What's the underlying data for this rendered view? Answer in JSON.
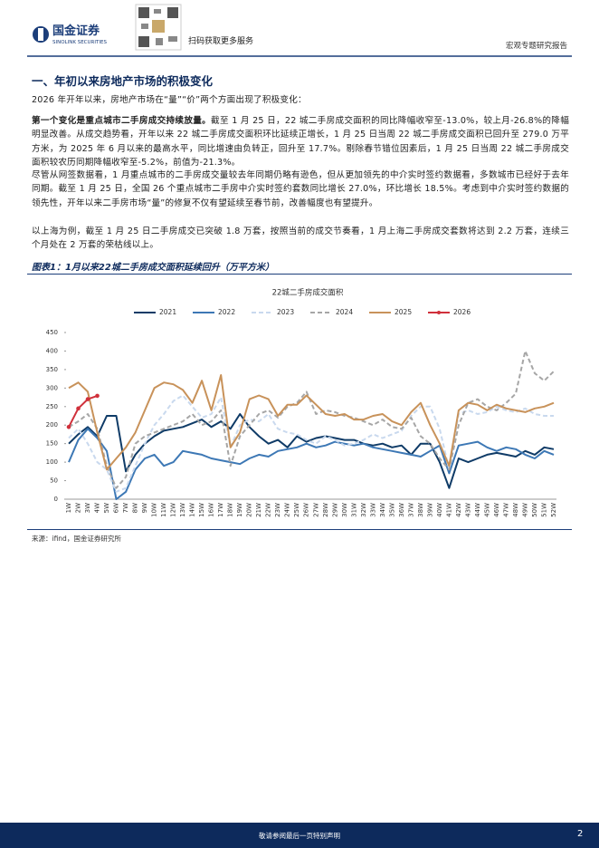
{
  "header": {
    "logo_name": "国金证券",
    "logo_sub": "SINOLINK SECURITIES",
    "qr_caption": "扫码获取更多服务",
    "report_type": "宏观专题研究报告"
  },
  "section_title": "一、年初以来房地产市场的积极变化",
  "paragraphs": [
    "2026 年开年以来，房地产市场在“量”“价”两个方面出现了积极变化：",
    {
      "lead": "第一个变化是重点城市二手房成交持续放量。",
      "text": "截至 1 月 25 日，22 城二手房成交面积的同比降幅收窄至-13.0%，较上月-26.8%的降幅明显改善。从成交趋势看，开年以来 22 城二手房成交面积环比延续正增长，1 月 25 日当周 22 城二手房成交面积已回升至 279.0 万平方米，为 2025 年 6 月以来的最高水平，同比增速由负转正，回升至 17.7%。剔除春节错位因素后，1 月 25 日当周 22 城二手房成交面积较农历同期降幅收窄至-5.2%，前值为-21.3%。"
    },
    "尽管从网签数据看，1 月重点城市的二手房成交量较去年同期仍略有逊色，但从更加领先的中介实时签约数据看，多数城市已经好于去年同期。截至 1 月 25 日，全国 26 个重点城市二手房中介实时签约套数同比增长 27.0%，环比增长 18.5%。考虑到中介实时签约数据的领先性，开年以来二手房市场“量”的修复不仅有望延续至春节前，改善幅度也有望提升。",
    "以上海为例，截至 1 月 25 日二手房成交已突破 1.8 万套，按照当前的成交节奏看，1 月上海二手房成交套数将达到 2.2 万套，连续三个月处在 2 万套的荣枯线以上。"
  ],
  "figure": {
    "title": "图表1：1月以来22城二手房成交面积延续回升（万平方米）",
    "source": "来源：ifind，国金证券研究所"
  },
  "chart_data": {
    "type": "line",
    "title": "22城二手房成交面积",
    "categories": [
      "1W",
      "2W",
      "3W",
      "4W",
      "5W",
      "6W",
      "7W",
      "8W",
      "9W",
      "10W",
      "11W",
      "12W",
      "13W",
      "14W",
      "15W",
      "16W",
      "17W",
      "18W",
      "19W",
      "20W",
      "21W",
      "22W",
      "23W",
      "24W",
      "25W",
      "26W",
      "27W",
      "28W",
      "29W",
      "30W",
      "31W",
      "32W",
      "33W",
      "34W",
      "35W",
      "36W",
      "37W",
      "38W",
      "39W",
      "40W",
      "41W",
      "42W",
      "43W",
      "44W",
      "45W",
      "46W",
      "47W",
      "48W",
      "49W",
      "50W",
      "51W",
      "52W"
    ],
    "ylim": [
      0,
      450
    ],
    "yticks": [
      0,
      50,
      100,
      150,
      200,
      250,
      300,
      350,
      400,
      450
    ],
    "legend": "top",
    "series": [
      {
        "name": "2021",
        "color": "#0f3b67",
        "dashed": false,
        "markers": false,
        "values": [
          150,
          175,
          195,
          170,
          225,
          225,
          75,
          120,
          150,
          170,
          185,
          190,
          195,
          205,
          215,
          195,
          210,
          190,
          230,
          195,
          170,
          150,
          160,
          140,
          170,
          155,
          165,
          170,
          165,
          160,
          160,
          150,
          145,
          150,
          140,
          145,
          120,
          150,
          150,
          100,
          30,
          110,
          100,
          110,
          120,
          125,
          120,
          115,
          130,
          120,
          140,
          135
        ]
      },
      {
        "name": "2022",
        "color": "#3d78b5",
        "dashed": false,
        "markers": false,
        "values": [
          100,
          160,
          190,
          165,
          130,
          0,
          20,
          80,
          110,
          120,
          90,
          100,
          130,
          125,
          120,
          110,
          105,
          100,
          95,
          110,
          120,
          115,
          130,
          135,
          140,
          150,
          140,
          145,
          155,
          150,
          145,
          150,
          140,
          135,
          130,
          125,
          120,
          115,
          130,
          145,
          70,
          145,
          150,
          155,
          140,
          130,
          140,
          135,
          120,
          110,
          130,
          120
        ]
      },
      {
        "name": "2023",
        "color": "#c9d9ee",
        "dashed": true,
        "markers": false,
        "values": [
          165,
          190,
          150,
          100,
          80,
          20,
          30,
          90,
          150,
          200,
          230,
          265,
          280,
          250,
          220,
          230,
          275,
          140,
          200,
          215,
          210,
          230,
          190,
          180,
          175,
          160,
          150,
          170,
          160,
          145,
          150,
          160,
          175,
          165,
          175,
          185,
          225,
          250,
          250,
          190,
          80,
          230,
          240,
          230,
          235,
          250,
          240,
          235,
          245,
          230,
          225,
          225
        ]
      },
      {
        "name": "2024",
        "color": "#a6a6a6",
        "dashed": true,
        "markers": false,
        "values": [
          195,
          210,
          230,
          190,
          90,
          30,
          60,
          150,
          170,
          180,
          190,
          200,
          210,
          230,
          200,
          210,
          240,
          90,
          170,
          200,
          230,
          240,
          220,
          250,
          260,
          290,
          230,
          240,
          235,
          225,
          220,
          210,
          200,
          215,
          195,
          190,
          220,
          170,
          150,
          110,
          80,
          200,
          260,
          270,
          250,
          240,
          260,
          285,
          400,
          340,
          320,
          345
        ]
      },
      {
        "name": "2025",
        "color": "#c8925a",
        "dashed": false,
        "markers": false,
        "values": [
          300,
          315,
          290,
          180,
          80,
          110,
          140,
          180,
          240,
          300,
          315,
          310,
          295,
          260,
          320,
          240,
          335,
          140,
          180,
          270,
          280,
          270,
          225,
          255,
          255,
          280,
          255,
          230,
          225,
          230,
          215,
          215,
          225,
          230,
          210,
          200,
          235,
          260,
          200,
          150,
          90,
          240,
          260,
          255,
          240,
          255,
          245,
          240,
          235,
          245,
          250,
          260
        ]
      },
      {
        "name": "2026",
        "color": "#d0303b",
        "dashed": false,
        "markers": true,
        "values": [
          195,
          245,
          270,
          279,
          null,
          null,
          null,
          null,
          null,
          null,
          null,
          null,
          null,
          null,
          null,
          null,
          null,
          null,
          null,
          null,
          null,
          null,
          null,
          null,
          null,
          null,
          null,
          null,
          null,
          null,
          null,
          null,
          null,
          null,
          null,
          null,
          null,
          null,
          null,
          null,
          null,
          null,
          null,
          null,
          null,
          null,
          null,
          null,
          null,
          null,
          null,
          null
        ]
      }
    ]
  },
  "footer": {
    "notice": "敬请参阅最后一页特别声明",
    "page": "2"
  }
}
